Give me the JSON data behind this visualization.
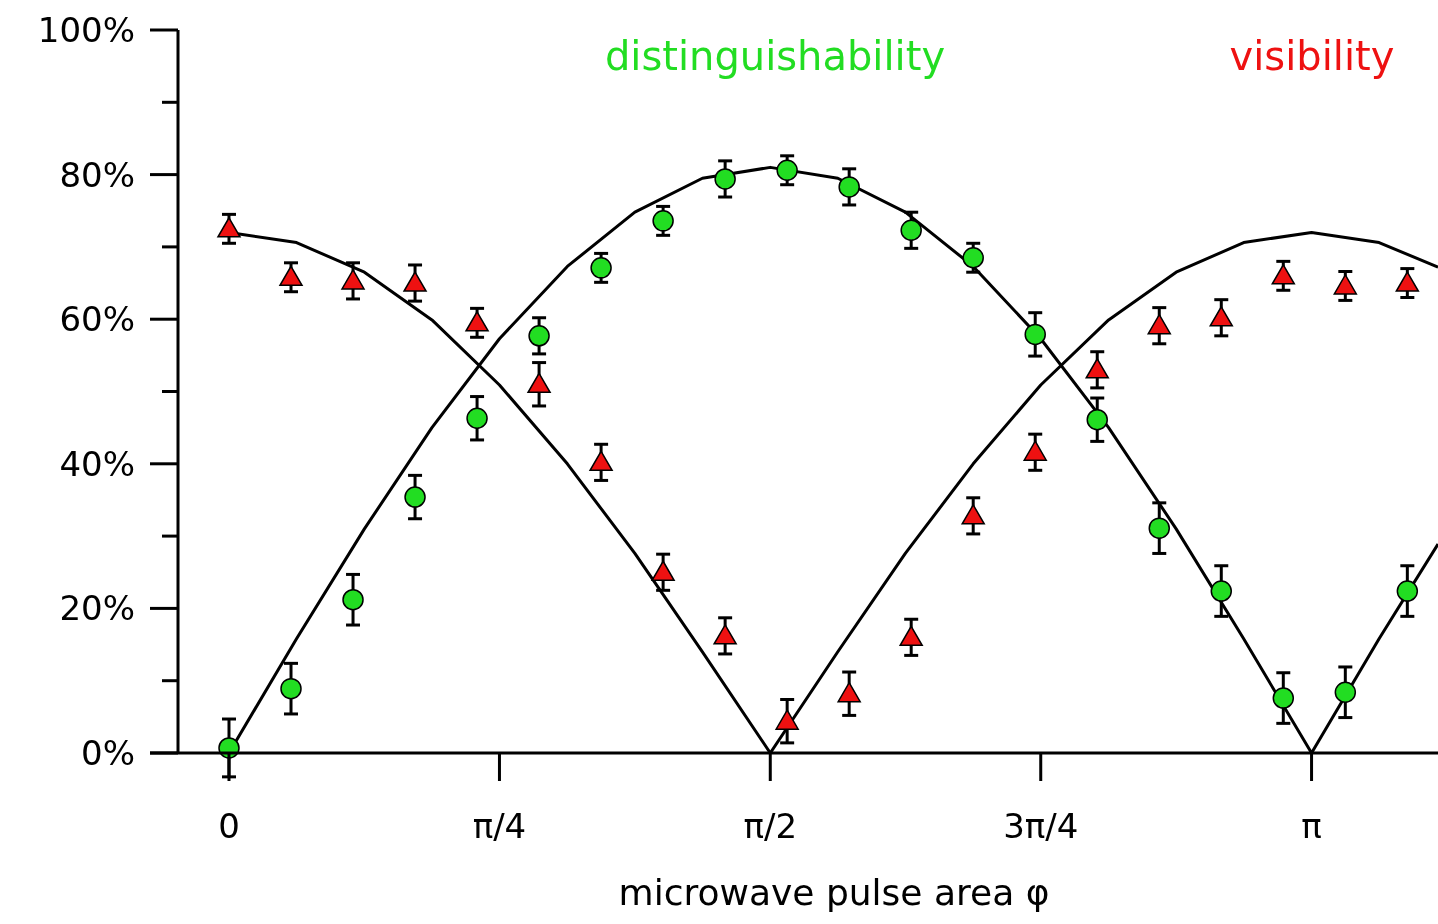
{
  "chart_data": {
    "type": "scatter",
    "xlabel": "microwave pulse area φ",
    "xlim": [
      -0.148,
      3.509
    ],
    "ylim": [
      0,
      100
    ],
    "xticks": [
      0,
      {
        "value": 0.785,
        "label": "π/4"
      },
      {
        "value": 1.571,
        "label": "π/2"
      },
      {
        "value": 2.356,
        "label": "3π/4"
      },
      {
        "value": 3.142,
        "label": "π"
      }
    ],
    "yticks": [
      {
        "value": 0,
        "label": "0%"
      },
      {
        "value": 10,
        "label": null
      },
      {
        "value": 20,
        "label": "20%"
      },
      {
        "value": 30,
        "label": null
      },
      {
        "value": 40,
        "label": "40%"
      },
      {
        "value": 50,
        "label": null
      },
      {
        "value": 60,
        "label": "60%"
      },
      {
        "value": 70,
        "label": null
      },
      {
        "value": 80,
        "label": "80%"
      },
      {
        "value": 90,
        "label": null
      },
      {
        "value": 100,
        "label": "100%"
      }
    ],
    "grid": false,
    "legend": "top",
    "series": [
      {
        "type": "line",
        "marker": "none",
        "color": "#000000",
        "x": [
          0,
          0.196,
          0.393,
          0.589,
          0.785,
          0.982,
          1.178,
          1.374,
          1.571,
          1.767,
          1.963,
          2.16,
          2.356,
          2.553,
          2.749,
          2.945,
          3.142,
          3.338,
          3.509
        ],
        "values": [
          0,
          15.8,
          31,
          45,
          57.3,
          67.3,
          74.8,
          79.5,
          81,
          79.5,
          74.8,
          67.3,
          57.3,
          45,
          31,
          15.8,
          0,
          15.8,
          28.9
        ]
      },
      {
        "type": "line",
        "marker": "none",
        "color": "#000000",
        "x": [
          0,
          0.196,
          0.393,
          0.589,
          0.785,
          0.982,
          1.178,
          1.374,
          1.571,
          1.767,
          1.963,
          2.16,
          2.356,
          2.553,
          2.749,
          2.945,
          3.142,
          3.338,
          3.509
        ],
        "values": [
          72,
          70.6,
          66.5,
          59.9,
          50.9,
          40,
          27.6,
          14,
          0,
          14,
          27.6,
          40,
          50.9,
          59.9,
          66.5,
          70.6,
          72,
          70.6,
          67.2
        ]
      },
      {
        "name": "distinguishability",
        "type": "scatter",
        "marker": "circle",
        "color": "#22dd22",
        "x": [
          0,
          0.18,
          0.36,
          0.54,
          0.72,
          0.9,
          1.08,
          1.26,
          1.44,
          1.62,
          1.8,
          1.98,
          2.16,
          2.34,
          2.52,
          2.7,
          2.88,
          3.06,
          3.24,
          3.42
        ],
        "values": [
          0.7,
          8.9,
          21.2,
          35.4,
          46.3,
          57.7,
          67.1,
          73.6,
          79.4,
          80.6,
          78.3,
          72.3,
          68.5,
          57.9,
          46.1,
          31.1,
          22.4,
          7.6,
          8.4,
          22.4
        ],
        "errors": [
          4,
          3.5,
          3.5,
          3,
          3,
          2.5,
          2,
          2,
          2.5,
          2,
          2.5,
          2.5,
          2,
          3,
          3,
          3.5,
          3.5,
          3.5,
          3.5,
          3.5
        ]
      },
      {
        "name": "visibility",
        "type": "scatter",
        "marker": "triangle",
        "color": "#ee1111",
        "x": [
          0,
          0.18,
          0.36,
          0.54,
          0.72,
          0.9,
          1.08,
          1.26,
          1.44,
          1.62,
          1.8,
          1.98,
          2.16,
          2.34,
          2.52,
          2.7,
          2.88,
          3.06,
          3.24,
          3.42
        ],
        "values": [
          72.5,
          65.8,
          65.3,
          65,
          59.5,
          51,
          40.2,
          25,
          16.2,
          4.4,
          8.2,
          16,
          32.8,
          41.6,
          53,
          59.1,
          60.2,
          66,
          64.6,
          65
        ],
        "errors": [
          2,
          2,
          2.5,
          2.5,
          2,
          3,
          2.5,
          2.5,
          2.5,
          3,
          3,
          2.5,
          2.5,
          2.5,
          2.5,
          2.5,
          2.5,
          2,
          2,
          2
        ]
      }
    ]
  }
}
